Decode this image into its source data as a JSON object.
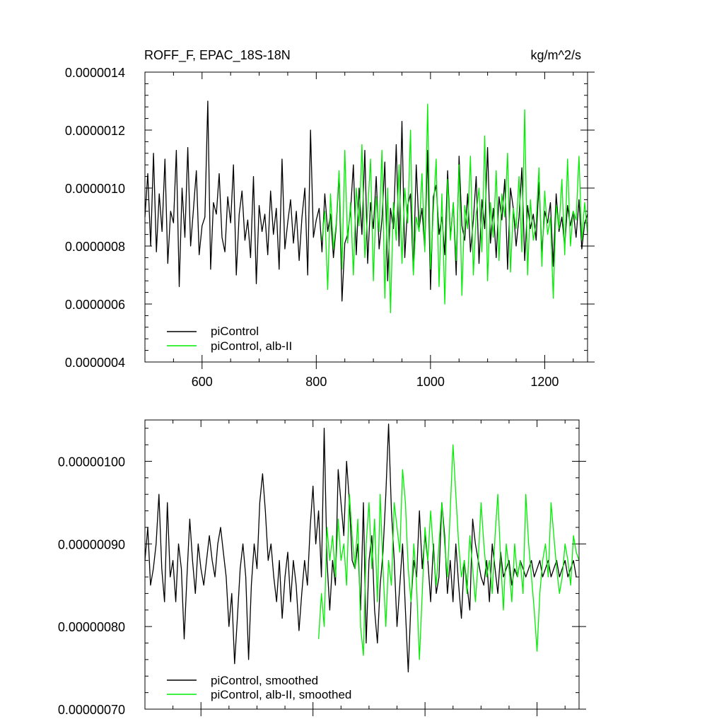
{
  "chart_data": [
    {
      "type": "line",
      "title": "ROFF_F, EPAC_18S-18N",
      "units": "kg/m^2/s",
      "xlim": [
        500,
        1275
      ],
      "ylim": [
        4e-07,
        1.4e-06
      ],
      "x_ticks": [
        600,
        800,
        1000,
        1200
      ],
      "x_tick_labels": [
        "600",
        "800",
        "1000",
        "1200"
      ],
      "y_ticks": [
        4e-07,
        6e-07,
        8e-07,
        1e-06,
        1.2e-06,
        1.4e-06
      ],
      "y_tick_labels": [
        "0.0000004",
        "0.0000006",
        "0.0000008",
        "0.0000010",
        "0.0000012",
        "0.0000014"
      ],
      "grid": false,
      "legend_position": "bottom-left",
      "series": [
        {
          "name": "piControl",
          "color": "#000000",
          "x_start": 500,
          "x_end": 1275,
          "step": 5,
          "values": [
            9e-07,
            1.05e-06,
            8e-07,
            1.12e-06,
            7.8e-07,
            9.8e-07,
            8.5e-07,
            1.1e-06,
            7.4e-07,
            9.2e-07,
            8.8e-07,
            1.13e-06,
            6.6e-07,
            1e-06,
            8.3e-07,
            1.14e-06,
            8e-07,
            9.3e-07,
            1.06e-06,
            7.7e-07,
            8.7e-07,
            9e-07,
            1.3e-06,
            7.2e-07,
            9.5e-07,
            9.1e-07,
            1.05e-06,
            8.3e-07,
            7.8e-07,
            9.7e-07,
            8.8e-07,
            1.08e-06,
            7e-07,
            9.1e-07,
            9.9e-07,
            8.2e-07,
            8.9e-07,
            7.6e-07,
            1.04e-06,
            6.7e-07,
            9.4e-07,
            8.5e-07,
            9.1e-07,
            7.7e-07,
            9.9e-07,
            8.4e-07,
            9.3e-07,
            7.2e-07,
            1.1e-06,
            7.9e-07,
            8.8e-07,
            9.6e-07,
            8.1e-07,
            9.2e-07,
            7.5e-07,
            9e-07,
            1e-06,
            7e-07,
            1.2e-06,
            8.3e-07,
            8.9e-07,
            9.3e-07,
            7.8e-07,
            9.8e-07,
            8.5e-07,
            9.1e-07,
            7.6e-07,
            8.7e-07,
            1.05e-06,
            6.1e-07,
            8.1e-07,
            8.4e-07,
            9.2e-07,
            1.08e-06,
            7.7e-07,
            1e-06,
            8.4e-07,
            1.13e-06,
            7.4e-07,
            9.5e-07,
            8.6e-07,
            1.04e-06,
            7.9e-07,
            8.9e-07,
            1.09e-06,
            6.8e-07,
            9.3e-07,
            8.6e-07,
            1.15e-06,
            8e-07,
            1.23e-06,
            7.6e-07,
            9.4e-07,
            9.8e-07,
            7.1e-07,
            1.08e-06,
            8.6e-07,
            9.3e-07,
            7.9e-07,
            1.13e-06,
            6.5e-07,
            9.7e-07,
            1.01e-06,
            8.4e-07,
            9e-07,
            7.7e-07,
            1.06e-06,
            8.3e-07,
            9.5e-07,
            7e-07,
            1.11e-06,
            8.7e-07,
            8.2e-07,
            9.8e-07,
            7.8e-07,
            8.9e-07,
            1.04e-06,
            7.4e-07,
            9.6e-07,
            8.6e-07,
            1.14e-06,
            8.1e-07,
            9.3e-07,
            7.6e-07,
            9.7e-07,
            8.9e-07,
            1.03e-06,
            7.2e-07,
            1e-06,
            9.3e-07,
            8e-07,
            9e-07,
            1.07e-06,
            7.5e-07,
            9.4e-07,
            8.6e-07,
            9.1e-07,
            8.2e-07,
            1.02e-06,
            7.8e-07,
            9.2e-07,
            8.8e-07,
            9.5e-07,
            7.3e-07,
            9.8e-07,
            8.5e-07,
            9e-07,
            8e-07,
            9.4e-07,
            8.7e-07,
            9.2e-07,
            8.3e-07,
            9.6e-07,
            7.9e-07,
            8.8e-07,
            9.1e-07
          ]
        },
        {
          "name": "piControl, alb-II",
          "color": "#00ee00",
          "x_start": 810,
          "x_end": 1275,
          "step": 5,
          "values": [
            8.2e-07,
            9.2e-07,
            6.5e-07,
            9.8e-07,
            7.9e-07,
            8.8e-07,
            1.06e-06,
            7.2e-07,
            1.13e-06,
            8.1e-07,
            9.5e-07,
            7e-07,
            1e-06,
            8.7e-07,
            1.15e-06,
            7.6e-07,
            9.2e-07,
            1.1e-06,
            6.8e-07,
            9.7e-07,
            8.5e-07,
            1.13e-06,
            6.2e-07,
            1e-06,
            5.7e-07,
            9.5e-07,
            8.2e-07,
            1.08e-06,
            7.4e-07,
            1e-06,
            8.8e-07,
            1.2e-06,
            7e-07,
            9e-07,
            8.5e-07,
            1.05e-06,
            7.8e-07,
            1.29e-06,
            7.2e-07,
            9.2e-07,
            1.1e-06,
            6.6e-07,
            9.8e-07,
            6e-07,
            1.03e-06,
            8.2e-07,
            9.5e-07,
            7.5e-07,
            1.08e-06,
            6.3e-07,
            9.4e-07,
            8.6e-07,
            1.11e-06,
            7e-07,
            9.1e-07,
            1e-06,
            7.8e-07,
            1.18e-06,
            6.8e-07,
            9.5e-07,
            8.3e-07,
            1.06e-06,
            7.5e-07,
            9.8e-07,
            9e-07,
            1.12e-06,
            7.1e-07,
            9.3e-07,
            8.6e-07,
            1.04e-06,
            7.8e-07,
            1.27e-06,
            7e-07,
            9.6e-07,
            8.2e-07,
            8.8e-07,
            1.07e-06,
            7.3e-07,
            9.9e-07,
            8.4e-07,
            9e-07,
            6.2e-07,
            9.4e-07,
            8.6e-07,
            1.03e-06,
            7.7e-07,
            1.1e-06,
            8e-07,
            9.2e-07,
            8.9e-07,
            1.11e-06,
            8.2e-07,
            9.5e-07,
            8.4e-07
          ]
        }
      ]
    },
    {
      "type": "line",
      "xlim": [
        500,
        1275
      ],
      "ylim": [
        7e-07,
        1.05e-06
      ],
      "x_ticks": [
        600,
        800,
        1000,
        1200
      ],
      "x_tick_labels": [],
      "y_ticks": [
        7e-07,
        8e-07,
        9e-07,
        1e-06
      ],
      "y_tick_labels": [
        "0.00000070",
        "0.00000080",
        "0.00000090",
        "0.00000100"
      ],
      "grid": false,
      "legend_position": "bottom-left",
      "series": [
        {
          "name": "piControl, smoothed",
          "color": "#000000",
          "x_start": 500,
          "x_end": 1275,
          "step": 5,
          "values": [
            8.8e-07,
            9.2e-07,
            8.5e-07,
            8.7e-07,
            9e-07,
            9.6e-07,
            8.7e-07,
            8.3e-07,
            9.5e-07,
            8.6e-07,
            8.8e-07,
            8.3e-07,
            9e-07,
            8.7e-07,
            7.85e-07,
            8.6e-07,
            9.3e-07,
            8.8e-07,
            8.4e-07,
            9e-07,
            8.7e-07,
            8.5e-07,
            8.8e-07,
            9.1e-07,
            8.8e-07,
            8.6e-07,
            9e-07,
            9.2e-07,
            8.9e-07,
            8.6e-07,
            8e-07,
            8.4e-07,
            7.55e-07,
            8.1e-07,
            8.7e-07,
            9e-07,
            8.6e-07,
            7.6e-07,
            8.5e-07,
            9e-07,
            8.7e-07,
            9.5e-07,
            9.85e-07,
            9.4e-07,
            8.8e-07,
            9e-07,
            8.6e-07,
            8.3e-07,
            8.8e-07,
            8.1e-07,
            8.6e-07,
            8.9e-07,
            8.3e-07,
            8.8e-07,
            8.5e-07,
            7.95e-07,
            8.4e-07,
            8.8e-07,
            8.5e-07,
            9.2e-07,
            9.7e-07,
            9e-07,
            9.4e-07,
            8.6e-07,
            1.04e-06,
            8.8e-07,
            8.2e-07,
            8.8e-07,
            8.5e-07,
            9.9e-07,
            9.5e-07,
            9.1e-07,
            1e-06,
            9.5e-07,
            8.8e-07,
            8.7e-07,
            9e-07,
            8.2e-07,
            9.5e-07,
            7.8e-07,
            8.8e-07,
            9.1e-07,
            8.2e-07,
            7.8e-07,
            8.5e-07,
            8.9e-07,
            9.6e-07,
            1.045e-06,
            9.4e-07,
            8.8e-07,
            8e-07,
            8.5e-07,
            9e-07,
            8.2e-07,
            7.45e-07,
            8.3e-07,
            8.8e-07,
            8.6e-07,
            9.4e-07,
            8.7e-07,
            9.1e-07,
            8.8e-07,
            8.3e-07,
            9e-07,
            8.4e-07,
            8.6e-07,
            9.5e-07,
            9.1e-07,
            8.4e-07,
            8.8e-07,
            8.3e-07,
            9e-07,
            8.5e-07,
            8.1e-07,
            8.8e-07,
            8.5e-07,
            8.2e-07,
            9.3e-07,
            9e-07,
            8.8e-07,
            8.6e-07,
            8.5e-07,
            8.8e-07,
            8.3e-07,
            9e-07,
            8.7e-07,
            8.4e-07,
            8.9e-07,
            8.6e-07,
            8.7e-07,
            8.8e-07,
            8.5e-07,
            8.7e-07,
            8.6e-07,
            8.8e-07,
            8.7e-07,
            8.6e-07,
            8.7e-07,
            8.8e-07,
            8.6e-07,
            8.7e-07,
            8.8e-07,
            8.6e-07,
            8.7e-07,
            8.8e-07,
            8.6e-07,
            8.7e-07,
            8.8e-07,
            8.6e-07,
            8.7e-07,
            8.8e-07,
            8.6e-07,
            8.7e-07,
            8.8e-07,
            8.6e-07
          ]
        },
        {
          "name": "piControl, alb-II, smoothed",
          "color": "#00ee00",
          "x_start": 810,
          "x_end": 1275,
          "step": 5,
          "values": [
            7.85e-07,
            8.4e-07,
            8e-07,
            9.2e-07,
            8.8e-07,
            9.1e-07,
            8.6e-07,
            9.3e-07,
            8.8e-07,
            9e-07,
            8.5e-07,
            9.6e-07,
            9.1e-07,
            8.7e-07,
            9.3e-07,
            8e-07,
            7.65e-07,
            9e-07,
            9.5e-07,
            8.7e-07,
            9.3e-07,
            8.3e-07,
            9.6e-07,
            8.7e-07,
            8e-07,
            8.8e-07,
            8.5e-07,
            9.5e-07,
            9.2e-07,
            8.9e-07,
            9.9e-07,
            9.5e-07,
            8.7e-07,
            8.3e-07,
            9e-07,
            8.5e-07,
            7.6e-07,
            8.4e-07,
            9.2e-07,
            8.8e-07,
            9.4e-07,
            8.9e-07,
            8.5e-07,
            9e-07,
            9.5e-07,
            9e-07,
            8.6e-07,
            9.4e-07,
            1.02e-06,
            9.6e-07,
            9e-07,
            8.6e-07,
            8.8e-07,
            8.4e-07,
            9.1e-07,
            8.7e-07,
            8.3e-07,
            8.8e-07,
            9.5e-07,
            9e-07,
            8.6e-07,
            8.8e-07,
            8.4e-07,
            9.1e-07,
            9.6e-07,
            8.8e-07,
            8.2e-07,
            9e-07,
            8.7e-07,
            8.3e-07,
            9e-07,
            8.6e-07,
            8.8e-07,
            8.4e-07,
            9.6e-07,
            9e-07,
            8.6e-07,
            8.2e-07,
            7.7e-07,
            8.4e-07,
            8.8e-07,
            9e-07,
            8.6e-07,
            9.5e-07,
            9.1e-07,
            8.7e-07,
            8.4e-07,
            8.6e-07,
            9e-07,
            8.8e-07,
            8.5e-07,
            9.1e-07,
            8.9e-07,
            8.8e-07
          ]
        }
      ]
    }
  ]
}
